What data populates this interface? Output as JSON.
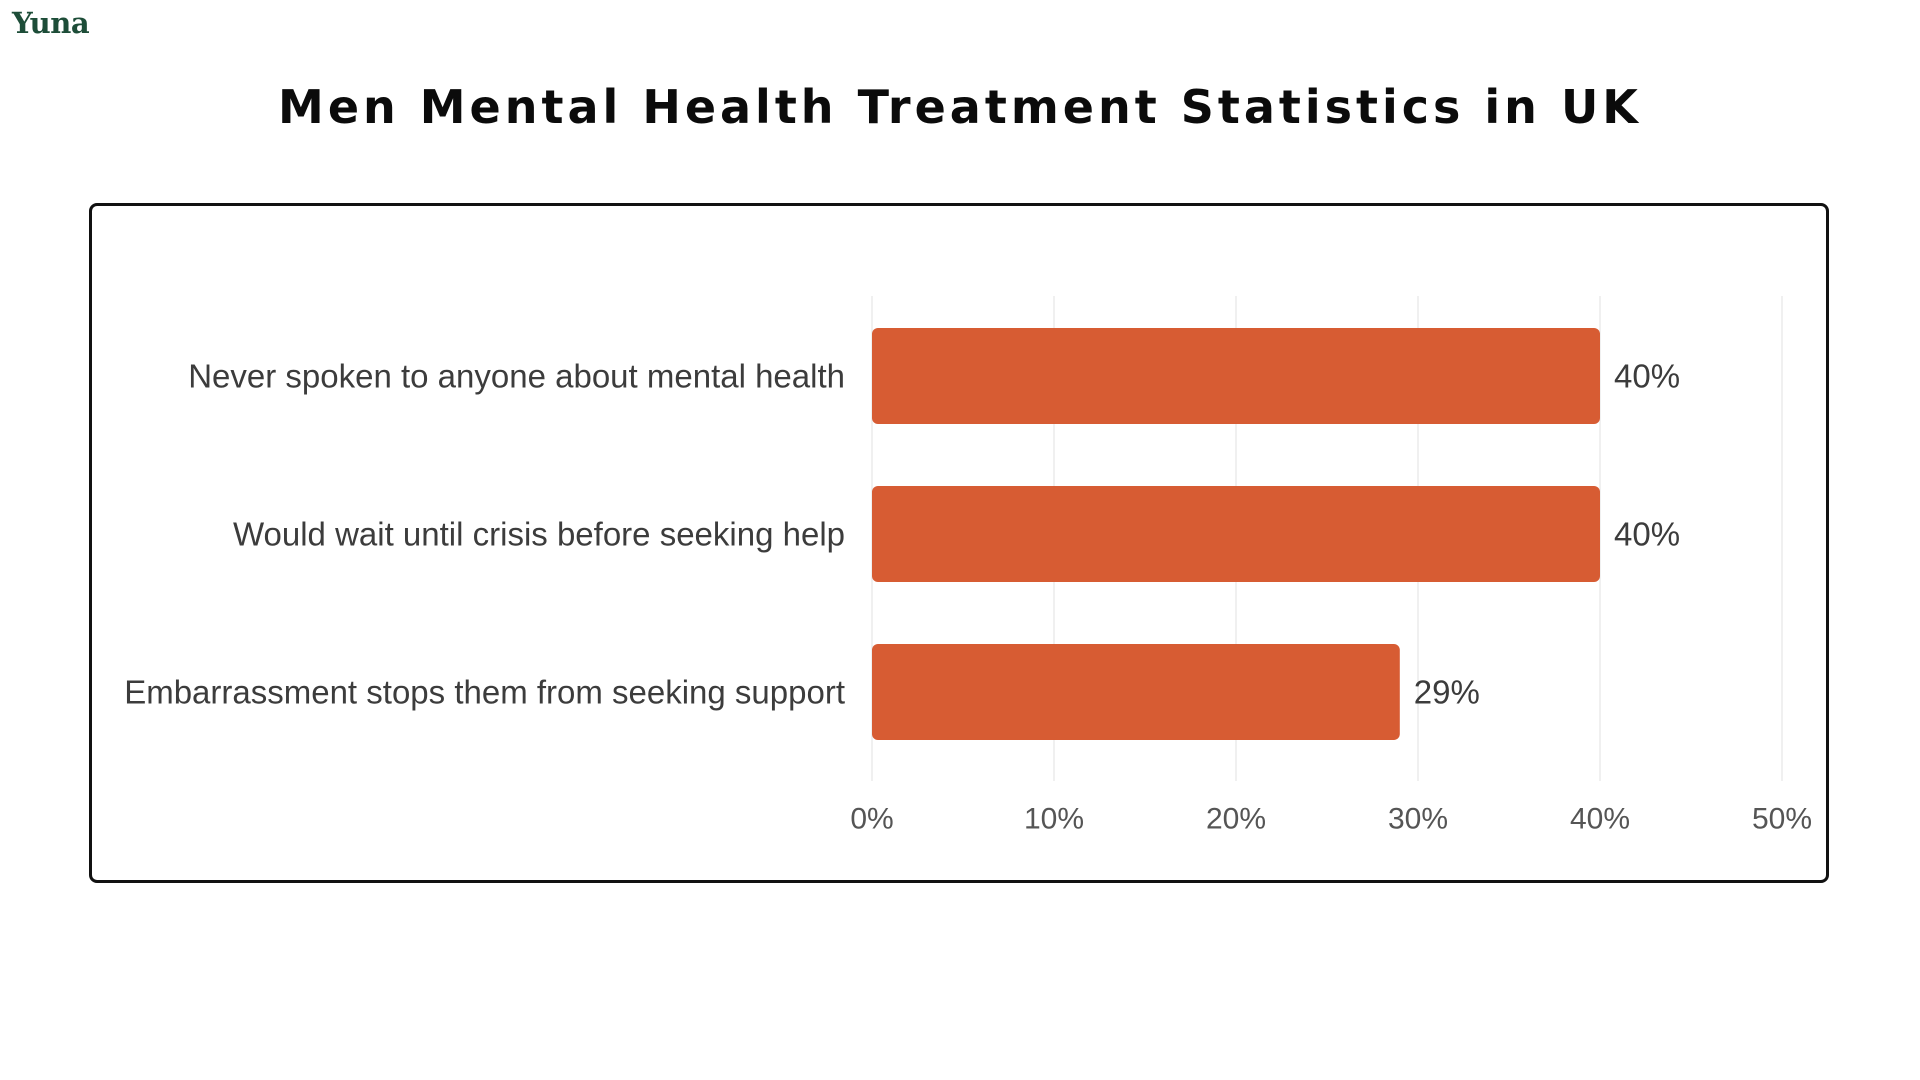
{
  "brand": {
    "name": "Yuna"
  },
  "colors": {
    "brand": "#1d4d38",
    "bar": "#d75c33",
    "grid": "#ebebeb",
    "text": "#3c3c3c"
  },
  "chart_data": {
    "type": "bar",
    "orientation": "horizontal",
    "title": "Men Mental Health Treatment Statistics in UK",
    "xlabel": "",
    "ylabel": "",
    "categories": [
      "Never spoken to anyone about mental health",
      "Would wait until crisis before seeking help",
      "Embarrassment stops them from seeking support"
    ],
    "values": [
      40,
      40,
      29
    ],
    "value_labels": [
      "40%",
      "40%",
      "29%"
    ],
    "xlim": [
      0,
      50
    ],
    "x_ticks": [
      0,
      10,
      20,
      30,
      40,
      50
    ],
    "x_tick_labels": [
      "0%",
      "10%",
      "20%",
      "30%",
      "40%",
      "50%"
    ],
    "grid": true,
    "legend": "none"
  }
}
